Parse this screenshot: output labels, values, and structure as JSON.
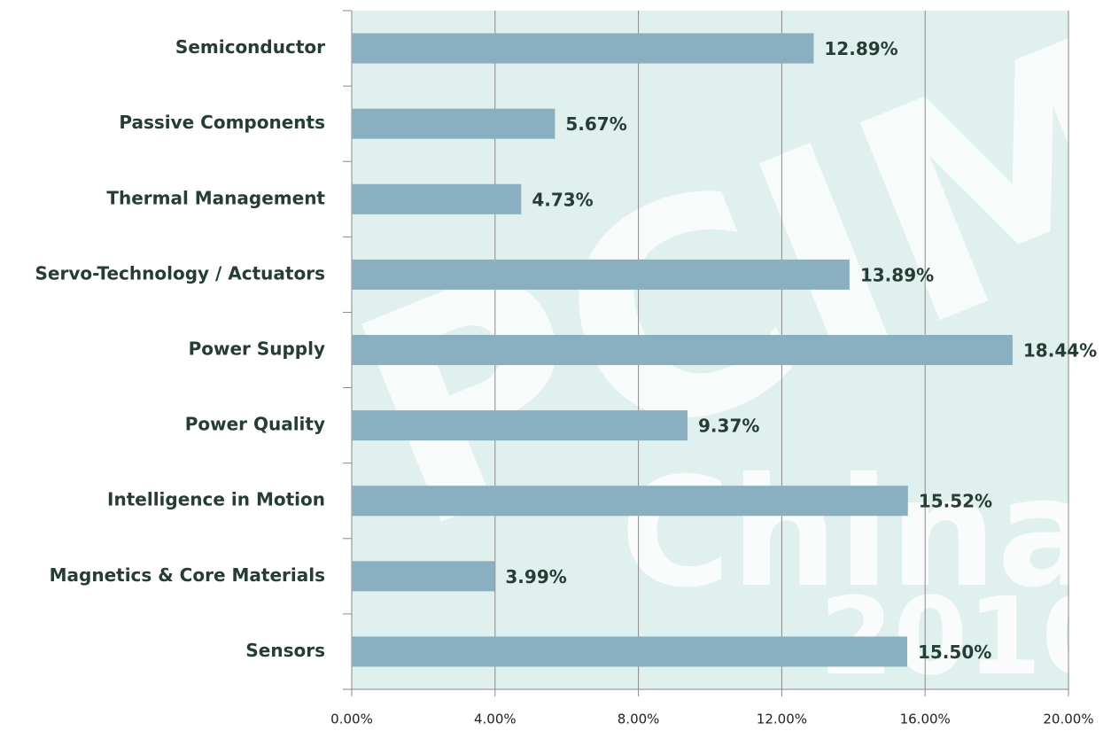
{
  "chart_data": {
    "type": "barh",
    "categories": [
      "Semiconductor",
      "Passive Components",
      "Thermal Management",
      "Servo-Technology / Actuators",
      "Power Supply",
      "Power Quality",
      "Intelligence in Motion",
      "Magnetics & Core Materials",
      "Sensors"
    ],
    "values": [
      12.89,
      5.67,
      4.73,
      13.89,
      18.44,
      9.37,
      15.52,
      3.99,
      15.5
    ],
    "value_labels": [
      "12.89%",
      "5.67%",
      "4.73%",
      "13.89%",
      "18.44%",
      "9.37%",
      "15.52%",
      "3.99%",
      "15.50%"
    ],
    "color": "#8aafc0",
    "xlim": [
      0,
      20
    ],
    "xticks": [
      {
        "value": 0,
        "label": "0.00%"
      },
      {
        "value": 4,
        "label": "4.00%"
      },
      {
        "value": 8,
        "label": "8.00%"
      },
      {
        "value": 12,
        "label": "12.00%"
      },
      {
        "value": 16,
        "label": "16.00%"
      },
      {
        "value": 20,
        "label": "20.00%"
      }
    ],
    "grid": true,
    "watermark": [
      "PCIM",
      "China",
      "2010"
    ]
  }
}
